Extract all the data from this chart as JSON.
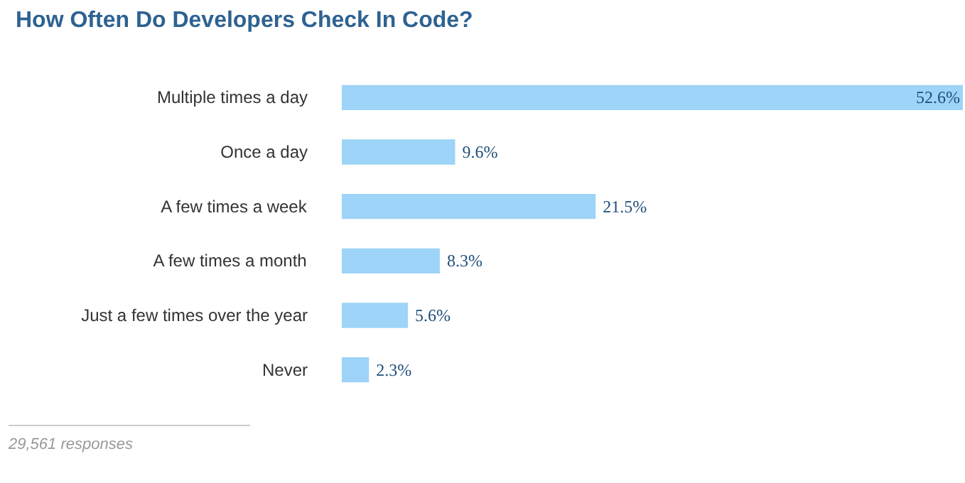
{
  "chart_data": {
    "type": "bar",
    "orientation": "horizontal",
    "title": "How Often Do Developers Check In Code?",
    "categories": [
      "Multiple times a day",
      "Once a day",
      "A few times a week",
      "A few times a month",
      "Just a few times over the year",
      "Never"
    ],
    "values": [
      52.6,
      9.6,
      21.5,
      8.3,
      5.6,
      2.3
    ],
    "value_labels": [
      "52.6%",
      "9.6%",
      "21.5%",
      "8.3%",
      "5.6%",
      "2.3%"
    ],
    "color": "#9dd4f8",
    "annotations": [
      "29,561 responses"
    ]
  }
}
